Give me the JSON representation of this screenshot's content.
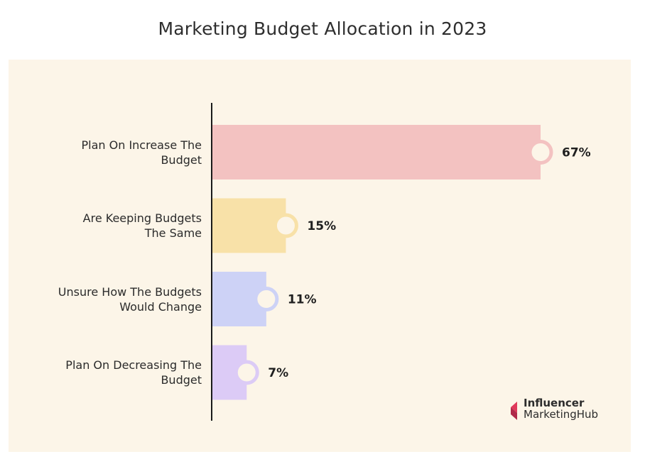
{
  "title": "Marketing Budget Allocation in 2023",
  "chart_data": {
    "type": "bar",
    "orientation": "horizontal",
    "title": "Marketing Budget Allocation in 2023",
    "categories": [
      "Plan On Increase The\nBudget",
      "Are Keeping Budgets\nThe Same",
      "Unsure How The Budgets\nWould Change",
      "Plan On Decreasing The\nBudget"
    ],
    "values": [
      67,
      15,
      11,
      7
    ],
    "value_labels": [
      "67%",
      "15%",
      "11%",
      "7%"
    ],
    "unit": "%",
    "xlim": [
      0,
      67
    ],
    "colors": [
      "#f3c2c1",
      "#f8e1a8",
      "#cdd2f6",
      "#dccbf6"
    ],
    "marker_rings": [
      "#f3c2c1",
      "#f8e1a8",
      "#cdd2f6",
      "#dccbf6"
    ],
    "xlabel": "",
    "ylabel": "",
    "grid": false,
    "legend": "none"
  },
  "brand": {
    "line1": "Influencer",
    "line2": "MarketingHub",
    "mark_colors": [
      "#e0395a",
      "#b02a4a"
    ]
  },
  "colors": {
    "panel": "#fcf5e8",
    "axis": "#1a1a1a",
    "text": "#2b2b2b",
    "marker_fill": "#fcf5e8"
  }
}
